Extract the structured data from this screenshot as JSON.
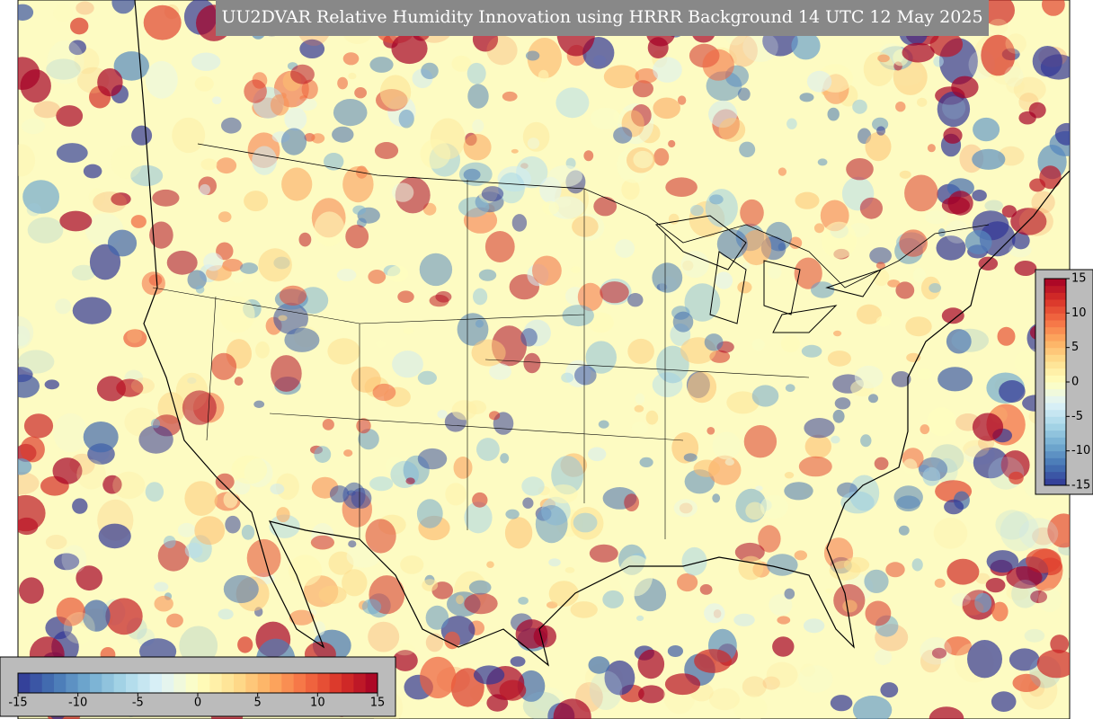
{
  "header": {
    "title": "UU2DVAR Relative Humidity Innovation using HRRR Background 14 UTC 12 May 2025"
  },
  "colormap": {
    "colors": [
      "#313695",
      "#4575b4",
      "#74add1",
      "#abd9e9",
      "#e0f3f8",
      "#ffffbf",
      "#fee090",
      "#fdae61",
      "#f46d43",
      "#d73027",
      "#a50026"
    ],
    "steps": 30
  },
  "colorbar_horizontal": {
    "range": [
      -15,
      15
    ],
    "ticks": [
      -15,
      -10,
      -5,
      0,
      5,
      10,
      15
    ]
  },
  "colorbar_vertical": {
    "range": [
      -15,
      15
    ],
    "ticks": [
      15,
      10,
      5,
      0,
      -5,
      -10,
      -15
    ]
  }
}
